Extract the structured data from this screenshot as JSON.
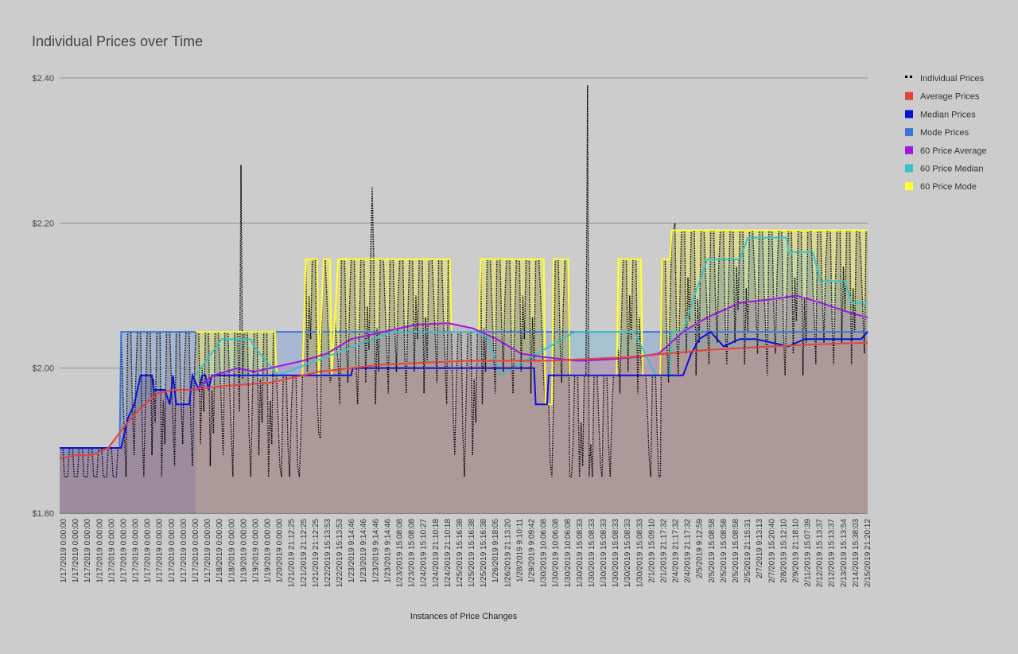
{
  "chart_data": {
    "type": "line",
    "title": "Individual Prices over Time",
    "xlabel": "Instances of Price Changes",
    "ylabel": "",
    "ylim": [
      1.8,
      2.4
    ],
    "yticks": [
      {
        "value": 1.8,
        "label": "$1.80"
      },
      {
        "value": 2.0,
        "label": "$2.00"
      },
      {
        "value": 2.2,
        "label": "$2.20"
      },
      {
        "value": 2.4,
        "label": "$2.40"
      }
    ],
    "grid": true,
    "legend_position": "right",
    "n_points": 500,
    "x_tick_labels": [
      "1/17/2019 0:00:00",
      "1/17/2019 0:00:00",
      "1/17/2019 0:00:00",
      "1/17/2019 0:00:00",
      "1/17/2019 0:00:00",
      "1/17/2019 0:00:00",
      "1/17/2019 0:00:00",
      "1/17/2019 0:00:00",
      "1/17/2019 0:00:00",
      "1/17/2019 0:00:00",
      "1/17/2019 0:00:00",
      "1/17/2019 0:00:00",
      "1/17/2019 0:00:00",
      "1/18/2019 0:00:00",
      "1/18/2019 0:00:00",
      "1/19/2019 0:00:00",
      "1/19/2019 0:00:00",
      "1/19/2019 0:00:00",
      "1/20/2019 0:00:00",
      "1/21/2019 21:12:25",
      "1/21/2019 21:12:25",
      "1/21/2019 21:12:25",
      "1/22/2019 15:13:53",
      "1/22/2019 15:13:53",
      "1/23/2019 9:14:46",
      "1/23/2019 9:14:46",
      "1/23/2019 9:14:46",
      "1/23/2019 9:14:46",
      "1/23/2019 15:08:08",
      "1/23/2019 15:08:08",
      "1/24/2019 15:10:27",
      "1/24/2019 21:10:18",
      "1/24/2019 21:10:18",
      "1/25/2019 15:16:38",
      "1/25/2019 15:16:38",
      "1/25/2019 15:16:38",
      "1/26/2019 9:18:05",
      "1/26/2019 21:13:20",
      "1/28/2019 9:10:11",
      "1/29/2019 9:09:42",
      "1/30/2019 10:06:08",
      "1/30/2019 10:06:08",
      "1/30/2019 10:06:08",
      "1/30/2019 15:08:33",
      "1/30/2019 15:08:33",
      "1/30/2019 15:08:33",
      "1/30/2019 15:08:33",
      "1/30/2019 15:08:33",
      "1/30/2019 15:08:33",
      "2/1/2019 15:09:10",
      "2/1/2019 21:17:32",
      "2/4/2019 21:17:32",
      "2/4/2019 21:17:32",
      "2/5/2019 9:12:59",
      "2/5/2019 15:08:58",
      "2/5/2019 15:08:58",
      "2/5/2019 15:08:58",
      "2/5/2019 21:15:31",
      "2/7/2019 9:13:13",
      "2/7/2019 15:20:40",
      "2/8/2019 15:12:10",
      "2/9/2019 21:18:10",
      "2/11/2019 15:07:39",
      "2/12/2019 15:13:37",
      "2/12/2019 15:13:37",
      "2/13/2019 15:13:54",
      "2/14/2019 15:38:03",
      "2/15/2019 21:20:12"
    ],
    "series": [
      {
        "name": "Individual Prices",
        "color": "#000000",
        "style": "dotted",
        "fill": "#888888"
      },
      {
        "name": "Average Prices",
        "color": "#e0443a",
        "style": "line",
        "fill": "#c89090"
      },
      {
        "name": "Median Prices",
        "color": "#0b10d8",
        "style": "line",
        "fill": "#6a6ab0"
      },
      {
        "name": "Mode Prices",
        "color": "#3c78d8",
        "style": "line",
        "fill": "#8aa6d6"
      },
      {
        "name": "60 Price Average",
        "color": "#9b19e0",
        "style": "line",
        "fill": "#b888d8"
      },
      {
        "name": "60 Price Median",
        "color": "#3ebfc4",
        "style": "line",
        "fill": "#a4d8c8"
      },
      {
        "name": "60 Price Mode",
        "color": "#ffff33",
        "style": "line",
        "fill": "#e4e470"
      }
    ],
    "series_segments": {
      "mode_prices": [
        [
          0,
          1.89
        ],
        [
          38,
          1.89
        ],
        [
          38,
          2.05
        ],
        [
          499,
          2.05
        ]
      ],
      "median_prices": [
        [
          0,
          1.89
        ],
        [
          38,
          1.89
        ],
        [
          40,
          1.91
        ],
        [
          42,
          1.93
        ],
        [
          46,
          1.95
        ],
        [
          48,
          1.97
        ],
        [
          50,
          1.99
        ],
        [
          58,
          1.99
        ],
        [
          58,
          1.97
        ],
        [
          65,
          1.97
        ],
        [
          68,
          1.95
        ],
        [
          70,
          1.99
        ],
        [
          72,
          1.95
        ],
        [
          80,
          1.95
        ],
        [
          82,
          1.99
        ],
        [
          86,
          1.97
        ],
        [
          88,
          1.99
        ],
        [
          90,
          1.99
        ],
        [
          92,
          1.97
        ],
        [
          94,
          1.99
        ],
        [
          181,
          1.99
        ],
        [
          181,
          2.0
        ],
        [
          294,
          2.0
        ],
        [
          294,
          1.95
        ],
        [
          302,
          1.95
        ],
        [
          302,
          1.99
        ],
        [
          368,
          1.99
        ],
        [
          368,
          1.99
        ],
        [
          385,
          1.99
        ],
        [
          390,
          2.02
        ],
        [
          395,
          2.04
        ],
        [
          402,
          2.05
        ],
        [
          410,
          2.03
        ],
        [
          420,
          2.04
        ],
        [
          430,
          2.04
        ],
        [
          450,
          2.03
        ],
        [
          460,
          2.04
        ],
        [
          495,
          2.04
        ],
        [
          499,
          2.05
        ]
      ],
      "average_prices": [
        [
          0,
          1.875
        ],
        [
          10,
          1.88
        ],
        [
          20,
          1.88
        ],
        [
          30,
          1.89
        ],
        [
          40,
          1.92
        ],
        [
          50,
          1.945
        ],
        [
          60,
          1.965
        ],
        [
          70,
          1.97
        ],
        [
          80,
          1.97
        ],
        [
          100,
          1.975
        ],
        [
          130,
          1.98
        ],
        [
          160,
          1.995
        ],
        [
          200,
          2.005
        ],
        [
          250,
          2.01
        ],
        [
          300,
          2.01
        ],
        [
          350,
          2.015
        ],
        [
          400,
          2.025
        ],
        [
          440,
          2.03
        ],
        [
          470,
          2.033
        ],
        [
          499,
          2.035
        ]
      ],
      "sixty_average": [
        [
          84,
          1.97
        ],
        [
          95,
          1.99
        ],
        [
          110,
          2.0
        ],
        [
          120,
          1.995
        ],
        [
          130,
          2.0
        ],
        [
          150,
          2.01
        ],
        [
          165,
          2.02
        ],
        [
          180,
          2.04
        ],
        [
          200,
          2.05
        ],
        [
          220,
          2.06
        ],
        [
          240,
          2.062
        ],
        [
          255,
          2.055
        ],
        [
          270,
          2.04
        ],
        [
          285,
          2.02
        ],
        [
          300,
          2.015
        ],
        [
          320,
          2.01
        ],
        [
          340,
          2.012
        ],
        [
          355,
          2.015
        ],
        [
          370,
          2.02
        ],
        [
          385,
          2.05
        ],
        [
          400,
          2.07
        ],
        [
          420,
          2.09
        ],
        [
          440,
          2.095
        ],
        [
          455,
          2.1
        ],
        [
          470,
          2.09
        ],
        [
          490,
          2.075
        ],
        [
          499,
          2.07
        ]
      ],
      "sixty_median": [
        [
          84,
          1.99
        ],
        [
          100,
          2.04
        ],
        [
          118,
          2.04
        ],
        [
          120,
          2.03
        ],
        [
          135,
          1.99
        ],
        [
          205,
          2.05
        ],
        [
          258,
          2.05
        ],
        [
          265,
          2.04
        ],
        [
          272,
          1.99
        ],
        [
          318,
          2.05
        ],
        [
          355,
          2.05
        ],
        [
          368,
          1.99
        ],
        [
          378,
          1.99
        ],
        [
          378,
          2.05
        ],
        [
          385,
          2.05
        ],
        [
          392,
          2.1
        ],
        [
          400,
          2.15
        ],
        [
          420,
          2.15
        ],
        [
          425,
          2.18
        ],
        [
          450,
          2.18
        ],
        [
          450,
          2.16
        ],
        [
          465,
          2.16
        ],
        [
          470,
          2.12
        ],
        [
          485,
          2.12
        ],
        [
          489,
          2.09
        ],
        [
          499,
          2.09
        ]
      ],
      "sixty_mode": [
        [
          84,
          2.05
        ],
        [
          134,
          2.05
        ],
        [
          134,
          1.99
        ],
        [
          150,
          1.99
        ],
        [
          152,
          2.15
        ],
        [
          160,
          2.15
        ],
        [
          160,
          1.99
        ],
        [
          163,
          2.15
        ],
        [
          168,
          2.15
        ],
        [
          168,
          1.99
        ],
        [
          172,
          2.15
        ],
        [
          242,
          2.15
        ],
        [
          242,
          2.05
        ],
        [
          260,
          2.05
        ],
        [
          260,
          2.15
        ],
        [
          300,
          2.15
        ],
        [
          300,
          1.95
        ],
        [
          305,
          1.95
        ],
        [
          305,
          2.15
        ],
        [
          315,
          2.15
        ],
        [
          315,
          1.99
        ],
        [
          345,
          1.99
        ],
        [
          345,
          2.15
        ],
        [
          360,
          2.15
        ],
        [
          360,
          1.99
        ],
        [
          372,
          1.99
        ],
        [
          372,
          2.15
        ],
        [
          378,
          2.15
        ],
        [
          378,
          2.19
        ],
        [
          499,
          2.19
        ]
      ]
    }
  }
}
